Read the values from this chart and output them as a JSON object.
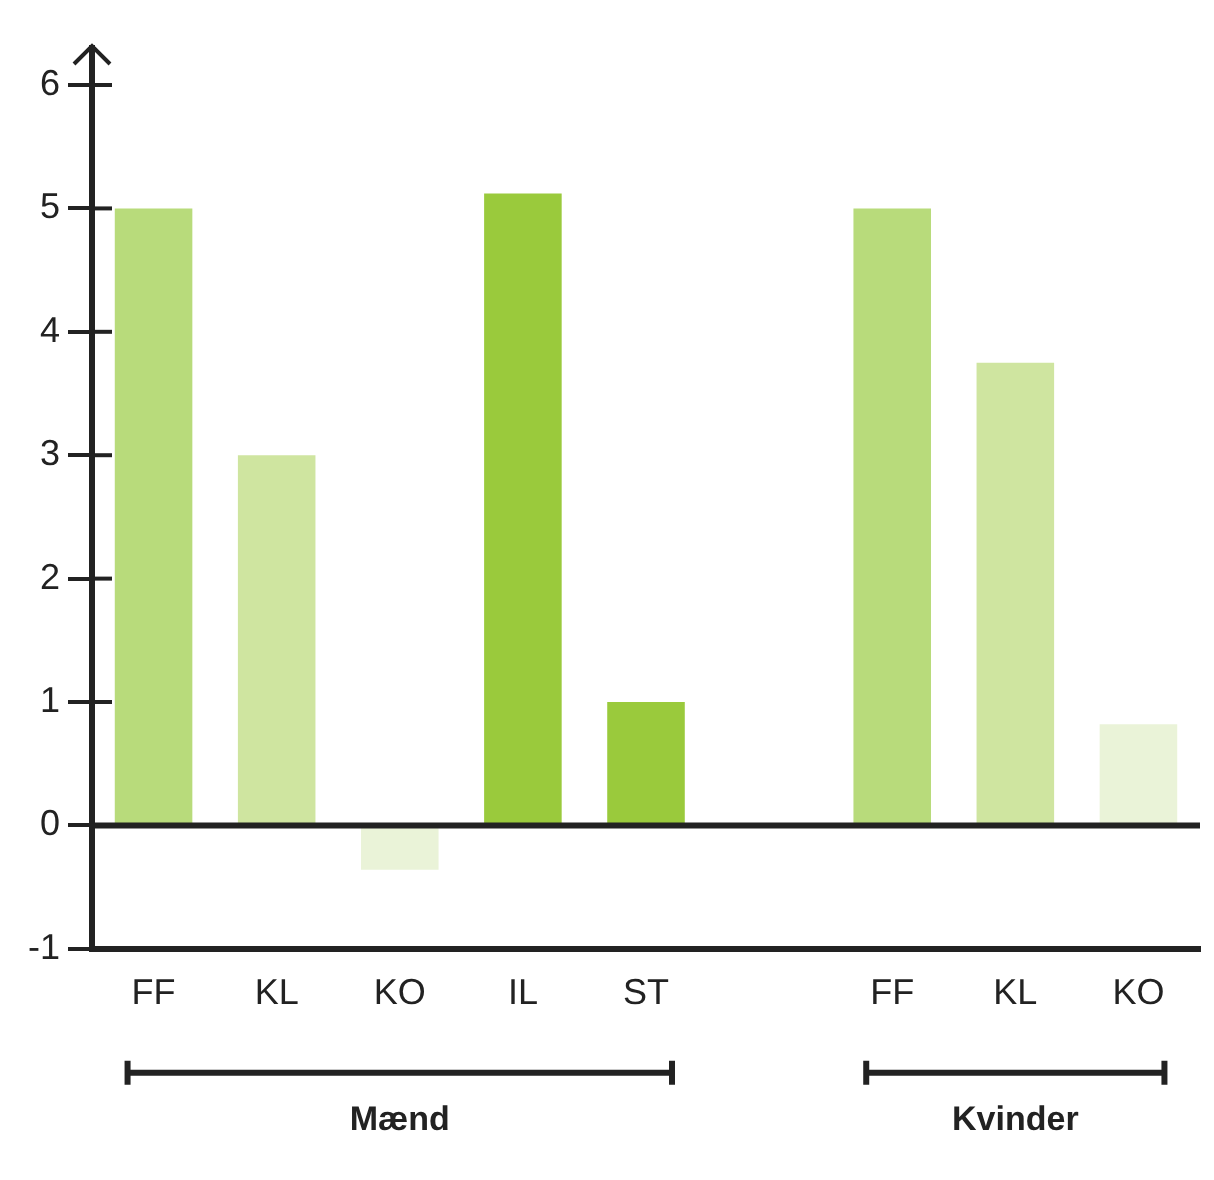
{
  "chart_data": {
    "type": "bar",
    "categories": [
      "FF",
      "KL",
      "KO",
      "IL",
      "ST",
      null,
      "FF",
      "KL",
      "KO"
    ],
    "values": [
      5.0,
      3.0,
      -0.36,
      5.12,
      1.0,
      null,
      5.0,
      3.75,
      0.82
    ],
    "colors": [
      "#b8db7b",
      "#cfe5a0",
      "#eaf3d8",
      "#9aca3c",
      "#9aca3c",
      "#ffffff",
      "#b8db7b",
      "#cfe5a0",
      "#eaf3d8"
    ],
    "ylim": [
      -1,
      6.3
    ],
    "yticks": [
      -1,
      0,
      1,
      2,
      3,
      4,
      5,
      6
    ],
    "ref_lines": [
      {
        "axis": "y",
        "value": 0
      }
    ],
    "annotations": [
      "Mænd",
      "Kvinder"
    ],
    "grid": false,
    "legend": false
  }
}
